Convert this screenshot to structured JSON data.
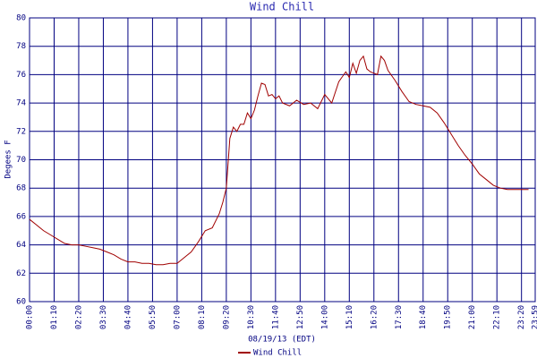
{
  "chart_data": {
    "type": "line",
    "title": "Wind Chill",
    "x_label": "08/19/13 (EDT)",
    "y_label": "Degees F",
    "xlim": [
      0,
      1439
    ],
    "ylim": [
      60,
      80
    ],
    "yticks": [
      60,
      62,
      64,
      66,
      68,
      70,
      72,
      74,
      76,
      78,
      80
    ],
    "xticks": [
      {
        "value": 0,
        "label": "00:00"
      },
      {
        "value": 70,
        "label": "01:10"
      },
      {
        "value": 140,
        "label": "02:20"
      },
      {
        "value": 210,
        "label": "03:30"
      },
      {
        "value": 280,
        "label": "04:40"
      },
      {
        "value": 350,
        "label": "05:50"
      },
      {
        "value": 420,
        "label": "07:00"
      },
      {
        "value": 490,
        "label": "08:10"
      },
      {
        "value": 560,
        "label": "09:20"
      },
      {
        "value": 630,
        "label": "10:30"
      },
      {
        "value": 700,
        "label": "11:40"
      },
      {
        "value": 770,
        "label": "12:50"
      },
      {
        "value": 840,
        "label": "14:00"
      },
      {
        "value": 910,
        "label": "15:10"
      },
      {
        "value": 980,
        "label": "16:20"
      },
      {
        "value": 1050,
        "label": "17:30"
      },
      {
        "value": 1120,
        "label": "18:40"
      },
      {
        "value": 1190,
        "label": "19:50"
      },
      {
        "value": 1260,
        "label": "21:00"
      },
      {
        "value": 1330,
        "label": "22:10"
      },
      {
        "value": 1400,
        "label": "23:20"
      },
      {
        "value": 1439,
        "label": "23:59"
      }
    ],
    "grid": true,
    "x": [
      0,
      20,
      40,
      60,
      80,
      100,
      120,
      140,
      160,
      180,
      200,
      220,
      240,
      260,
      280,
      300,
      320,
      340,
      360,
      380,
      400,
      420,
      440,
      460,
      480,
      500,
      520,
      540,
      550,
      560,
      570,
      580,
      590,
      600,
      610,
      620,
      630,
      640,
      650,
      660,
      670,
      680,
      690,
      700,
      710,
      720,
      740,
      760,
      780,
      800,
      820,
      840,
      860,
      880,
      900,
      910,
      920,
      930,
      940,
      950,
      960,
      970,
      980,
      990,
      1000,
      1010,
      1020,
      1040,
      1060,
      1080,
      1100,
      1120,
      1140,
      1160,
      1180,
      1200,
      1220,
      1240,
      1260,
      1280,
      1300,
      1320,
      1340,
      1360,
      1380,
      1420
    ],
    "series": [
      {
        "name": "Wind Chill",
        "color": "#a00000",
        "values": [
          65.8,
          65.4,
          65.0,
          64.7,
          64.4,
          64.1,
          64.0,
          64.0,
          63.9,
          63.8,
          63.7,
          63.5,
          63.3,
          63.0,
          62.8,
          62.8,
          62.7,
          62.7,
          62.6,
          62.6,
          62.7,
          62.7,
          63.1,
          63.5,
          64.2,
          65.0,
          65.2,
          66.2,
          67.0,
          68.0,
          71.5,
          72.3,
          72.0,
          72.5,
          72.5,
          73.3,
          72.9,
          73.5,
          74.5,
          75.4,
          75.3,
          74.5,
          74.6,
          74.3,
          74.5,
          74.0,
          73.8,
          74.2,
          73.9,
          74.0,
          73.6,
          74.6,
          74.0,
          75.5,
          76.2,
          75.8,
          76.8,
          76.1,
          77.0,
          77.3,
          76.4,
          76.2,
          76.1,
          76.0,
          77.3,
          77.0,
          76.3,
          75.6,
          74.8,
          74.1,
          73.9,
          73.8,
          73.7,
          73.3,
          72.6,
          71.8,
          71.0,
          70.3,
          69.7,
          69.0,
          68.6,
          68.2,
          68.0,
          67.9,
          67.9,
          67.9
        ]
      }
    ]
  }
}
